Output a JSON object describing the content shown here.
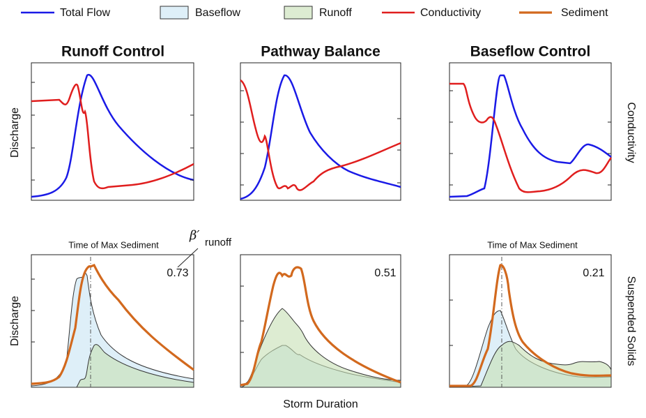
{
  "legend": [
    "Total Flow",
    "Baseflow",
    "Runoff",
    "Conductivity",
    "Sediment"
  ],
  "panels": [
    {
      "title": "Runoff Control",
      "annotation": "Time of Max Sediment",
      "beta": "0.73"
    },
    {
      "title": "Pathway Balance",
      "beta": "0.51"
    },
    {
      "title": "Baseflow Control",
      "annotation": "Time of Max Sediment",
      "beta": "0.21"
    }
  ],
  "y_labels": {
    "top": "Discharge",
    "bottom": "Discharge"
  },
  "right_labels": {
    "top": "Conductivity",
    "bottom": "Suspended Solids"
  },
  "x_label": "Storm Duration",
  "beta_label": {
    "symbol": "β′",
    "sub": "runoff"
  }
}
